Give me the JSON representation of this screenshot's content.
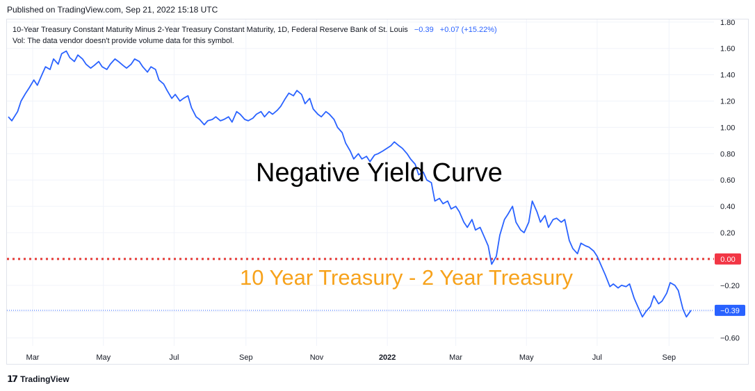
{
  "header": {
    "published": "Published on TradingView.com, Sep 21, 2022 15:18 UTC"
  },
  "legend": {
    "symbol": "10-Year Treasury Constant Maturity Minus 2-Year Treasury Constant Maturity, 1D, Federal Reserve Bank of St. Louis",
    "last_value": "−0.39",
    "change": "+0.07 (+15.22%)",
    "volume_note": "Vol: The data vendor doesn't provide volume data for this symbol."
  },
  "annotations": {
    "main": "Negative Yield Curve",
    "sub": "10 Year Treasury - 2 Year Treasury"
  },
  "footer": {
    "brand": "TradingView"
  },
  "colors": {
    "line": "#2962ff",
    "zero_line": "#e53935",
    "annotation_sub": "#f7a21b",
    "price_tag": "#2962ff",
    "zero_tag": "#f23645"
  },
  "chart_data": {
    "type": "line",
    "title": "10-Year Treasury Constant Maturity Minus 2-Year Treasury Constant Maturity",
    "ylim": [
      -0.66,
      1.82
    ],
    "y_ticks": [
      1.8,
      1.6,
      1.4,
      1.2,
      1.0,
      0.8,
      0.6,
      0.4,
      0.2,
      0.0,
      -0.2,
      -0.4,
      -0.6
    ],
    "y_tick_labels": [
      "1.80",
      "1.60",
      "1.40",
      "1.20",
      "1.00",
      "0.80",
      "0.60",
      "0.40",
      "0.20",
      "0.00",
      "−0.20",
      "−0.40",
      "−0.60"
    ],
    "x_range": [
      "2021-02-08",
      "2022-09-20"
    ],
    "x_ticks": [
      {
        "date": "2021-03-01",
        "label": "Mar"
      },
      {
        "date": "2021-05-01",
        "label": "May"
      },
      {
        "date": "2021-07-01",
        "label": "Jul"
      },
      {
        "date": "2021-09-01",
        "label": "Sep"
      },
      {
        "date": "2021-11-01",
        "label": "Nov"
      },
      {
        "date": "2022-01-01",
        "label": "2022"
      },
      {
        "date": "2022-03-01",
        "label": "Mar"
      },
      {
        "date": "2022-05-01",
        "label": "May"
      },
      {
        "date": "2022-07-01",
        "label": "Jul"
      },
      {
        "date": "2022-09-01",
        "label": "Sep"
      }
    ],
    "zero_line": {
      "value": 0.0,
      "label": "0.00"
    },
    "last_value": {
      "value": -0.39,
      "label": "−0.39"
    },
    "series": [
      {
        "points": [
          [
            "2021-02-08",
            1.08
          ],
          [
            "2021-02-11",
            1.05
          ],
          [
            "2021-02-16",
            1.12
          ],
          [
            "2021-02-19",
            1.2
          ],
          [
            "2021-02-23",
            1.26
          ],
          [
            "2021-02-26",
            1.3
          ],
          [
            "2021-03-02",
            1.36
          ],
          [
            "2021-03-05",
            1.32
          ],
          [
            "2021-03-09",
            1.4
          ],
          [
            "2021-03-12",
            1.46
          ],
          [
            "2021-03-16",
            1.44
          ],
          [
            "2021-03-19",
            1.52
          ],
          [
            "2021-03-23",
            1.48
          ],
          [
            "2021-03-26",
            1.56
          ],
          [
            "2021-03-30",
            1.58
          ],
          [
            "2021-04-02",
            1.53
          ],
          [
            "2021-04-06",
            1.5
          ],
          [
            "2021-04-09",
            1.55
          ],
          [
            "2021-04-13",
            1.52
          ],
          [
            "2021-04-16",
            1.48
          ],
          [
            "2021-04-20",
            1.45
          ],
          [
            "2021-04-23",
            1.47
          ],
          [
            "2021-04-27",
            1.5
          ],
          [
            "2021-04-30",
            1.46
          ],
          [
            "2021-05-04",
            1.44
          ],
          [
            "2021-05-07",
            1.48
          ],
          [
            "2021-05-11",
            1.52
          ],
          [
            "2021-05-14",
            1.5
          ],
          [
            "2021-05-18",
            1.47
          ],
          [
            "2021-05-21",
            1.45
          ],
          [
            "2021-05-25",
            1.48
          ],
          [
            "2021-05-28",
            1.52
          ],
          [
            "2021-06-01",
            1.5
          ],
          [
            "2021-06-04",
            1.46
          ],
          [
            "2021-06-08",
            1.42
          ],
          [
            "2021-06-11",
            1.46
          ],
          [
            "2021-06-15",
            1.44
          ],
          [
            "2021-06-18",
            1.36
          ],
          [
            "2021-06-22",
            1.33
          ],
          [
            "2021-06-25",
            1.28
          ],
          [
            "2021-06-29",
            1.22
          ],
          [
            "2021-07-02",
            1.25
          ],
          [
            "2021-07-06",
            1.2
          ],
          [
            "2021-07-09",
            1.22
          ],
          [
            "2021-07-13",
            1.24
          ],
          [
            "2021-07-16",
            1.15
          ],
          [
            "2021-07-20",
            1.08
          ],
          [
            "2021-07-23",
            1.06
          ],
          [
            "2021-07-27",
            1.02
          ],
          [
            "2021-07-30",
            1.05
          ],
          [
            "2021-08-03",
            1.06
          ],
          [
            "2021-08-06",
            1.08
          ],
          [
            "2021-08-10",
            1.05
          ],
          [
            "2021-08-13",
            1.06
          ],
          [
            "2021-08-17",
            1.08
          ],
          [
            "2021-08-20",
            1.04
          ],
          [
            "2021-08-24",
            1.12
          ],
          [
            "2021-08-27",
            1.1
          ],
          [
            "2021-08-31",
            1.06
          ],
          [
            "2021-09-03",
            1.05
          ],
          [
            "2021-09-07",
            1.07
          ],
          [
            "2021-09-10",
            1.1
          ],
          [
            "2021-09-14",
            1.12
          ],
          [
            "2021-09-17",
            1.08
          ],
          [
            "2021-09-21",
            1.12
          ],
          [
            "2021-09-24",
            1.1
          ],
          [
            "2021-09-28",
            1.13
          ],
          [
            "2021-10-01",
            1.16
          ],
          [
            "2021-10-05",
            1.22
          ],
          [
            "2021-10-08",
            1.26
          ],
          [
            "2021-10-12",
            1.24
          ],
          [
            "2021-10-15",
            1.28
          ],
          [
            "2021-10-19",
            1.25
          ],
          [
            "2021-10-22",
            1.18
          ],
          [
            "2021-10-26",
            1.22
          ],
          [
            "2021-10-29",
            1.14
          ],
          [
            "2021-11-02",
            1.1
          ],
          [
            "2021-11-05",
            1.08
          ],
          [
            "2021-11-09",
            1.12
          ],
          [
            "2021-11-12",
            1.1
          ],
          [
            "2021-11-16",
            1.06
          ],
          [
            "2021-11-19",
            1.0
          ],
          [
            "2021-11-23",
            0.96
          ],
          [
            "2021-11-26",
            0.88
          ],
          [
            "2021-11-30",
            0.82
          ],
          [
            "2021-12-03",
            0.76
          ],
          [
            "2021-12-07",
            0.8
          ],
          [
            "2021-12-10",
            0.76
          ],
          [
            "2021-12-14",
            0.78
          ],
          [
            "2021-12-17",
            0.74
          ],
          [
            "2021-12-21",
            0.79
          ],
          [
            "2021-12-24",
            0.8
          ],
          [
            "2021-12-28",
            0.82
          ],
          [
            "2022-01-04",
            0.86
          ],
          [
            "2022-01-07",
            0.89
          ],
          [
            "2022-01-11",
            0.86
          ],
          [
            "2022-01-14",
            0.84
          ],
          [
            "2022-01-18",
            0.8
          ],
          [
            "2022-01-21",
            0.76
          ],
          [
            "2022-01-25",
            0.72
          ],
          [
            "2022-01-28",
            0.64
          ],
          [
            "2022-02-01",
            0.66
          ],
          [
            "2022-02-04",
            0.6
          ],
          [
            "2022-02-08",
            0.58
          ],
          [
            "2022-02-11",
            0.44
          ],
          [
            "2022-02-15",
            0.46
          ],
          [
            "2022-02-18",
            0.42
          ],
          [
            "2022-02-22",
            0.44
          ],
          [
            "2022-02-25",
            0.38
          ],
          [
            "2022-03-01",
            0.4
          ],
          [
            "2022-03-04",
            0.36
          ],
          [
            "2022-03-08",
            0.28
          ],
          [
            "2022-03-11",
            0.24
          ],
          [
            "2022-03-15",
            0.3
          ],
          [
            "2022-03-18",
            0.22
          ],
          [
            "2022-03-22",
            0.24
          ],
          [
            "2022-03-25",
            0.18
          ],
          [
            "2022-03-29",
            0.1
          ],
          [
            "2022-04-01",
            -0.04
          ],
          [
            "2022-04-05",
            0.02
          ],
          [
            "2022-04-08",
            0.18
          ],
          [
            "2022-04-12",
            0.3
          ],
          [
            "2022-04-15",
            0.34
          ],
          [
            "2022-04-19",
            0.4
          ],
          [
            "2022-04-22",
            0.28
          ],
          [
            "2022-04-26",
            0.22
          ],
          [
            "2022-04-29",
            0.2
          ],
          [
            "2022-05-03",
            0.28
          ],
          [
            "2022-05-06",
            0.44
          ],
          [
            "2022-05-10",
            0.36
          ],
          [
            "2022-05-13",
            0.28
          ],
          [
            "2022-05-17",
            0.33
          ],
          [
            "2022-05-20",
            0.24
          ],
          [
            "2022-05-24",
            0.3
          ],
          [
            "2022-05-27",
            0.31
          ],
          [
            "2022-05-31",
            0.28
          ],
          [
            "2022-06-03",
            0.3
          ],
          [
            "2022-06-07",
            0.14
          ],
          [
            "2022-06-10",
            0.08
          ],
          [
            "2022-06-14",
            0.04
          ],
          [
            "2022-06-17",
            0.12
          ],
          [
            "2022-06-21",
            0.1
          ],
          [
            "2022-06-24",
            0.09
          ],
          [
            "2022-06-28",
            0.06
          ],
          [
            "2022-07-01",
            0.02
          ],
          [
            "2022-07-05",
            -0.06
          ],
          [
            "2022-07-08",
            -0.12
          ],
          [
            "2022-07-12",
            -0.21
          ],
          [
            "2022-07-15",
            -0.19
          ],
          [
            "2022-07-19",
            -0.22
          ],
          [
            "2022-07-22",
            -0.2
          ],
          [
            "2022-07-26",
            -0.21
          ],
          [
            "2022-07-29",
            -0.19
          ],
          [
            "2022-08-02",
            -0.3
          ],
          [
            "2022-08-05",
            -0.36
          ],
          [
            "2022-08-09",
            -0.44
          ],
          [
            "2022-08-12",
            -0.4
          ],
          [
            "2022-08-16",
            -0.36
          ],
          [
            "2022-08-19",
            -0.28
          ],
          [
            "2022-08-23",
            -0.34
          ],
          [
            "2022-08-26",
            -0.32
          ],
          [
            "2022-08-30",
            -0.26
          ],
          [
            "2022-09-02",
            -0.18
          ],
          [
            "2022-09-06",
            -0.2
          ],
          [
            "2022-09-09",
            -0.24
          ],
          [
            "2022-09-13",
            -0.38
          ],
          [
            "2022-09-16",
            -0.44
          ],
          [
            "2022-09-20",
            -0.39
          ]
        ]
      }
    ]
  }
}
